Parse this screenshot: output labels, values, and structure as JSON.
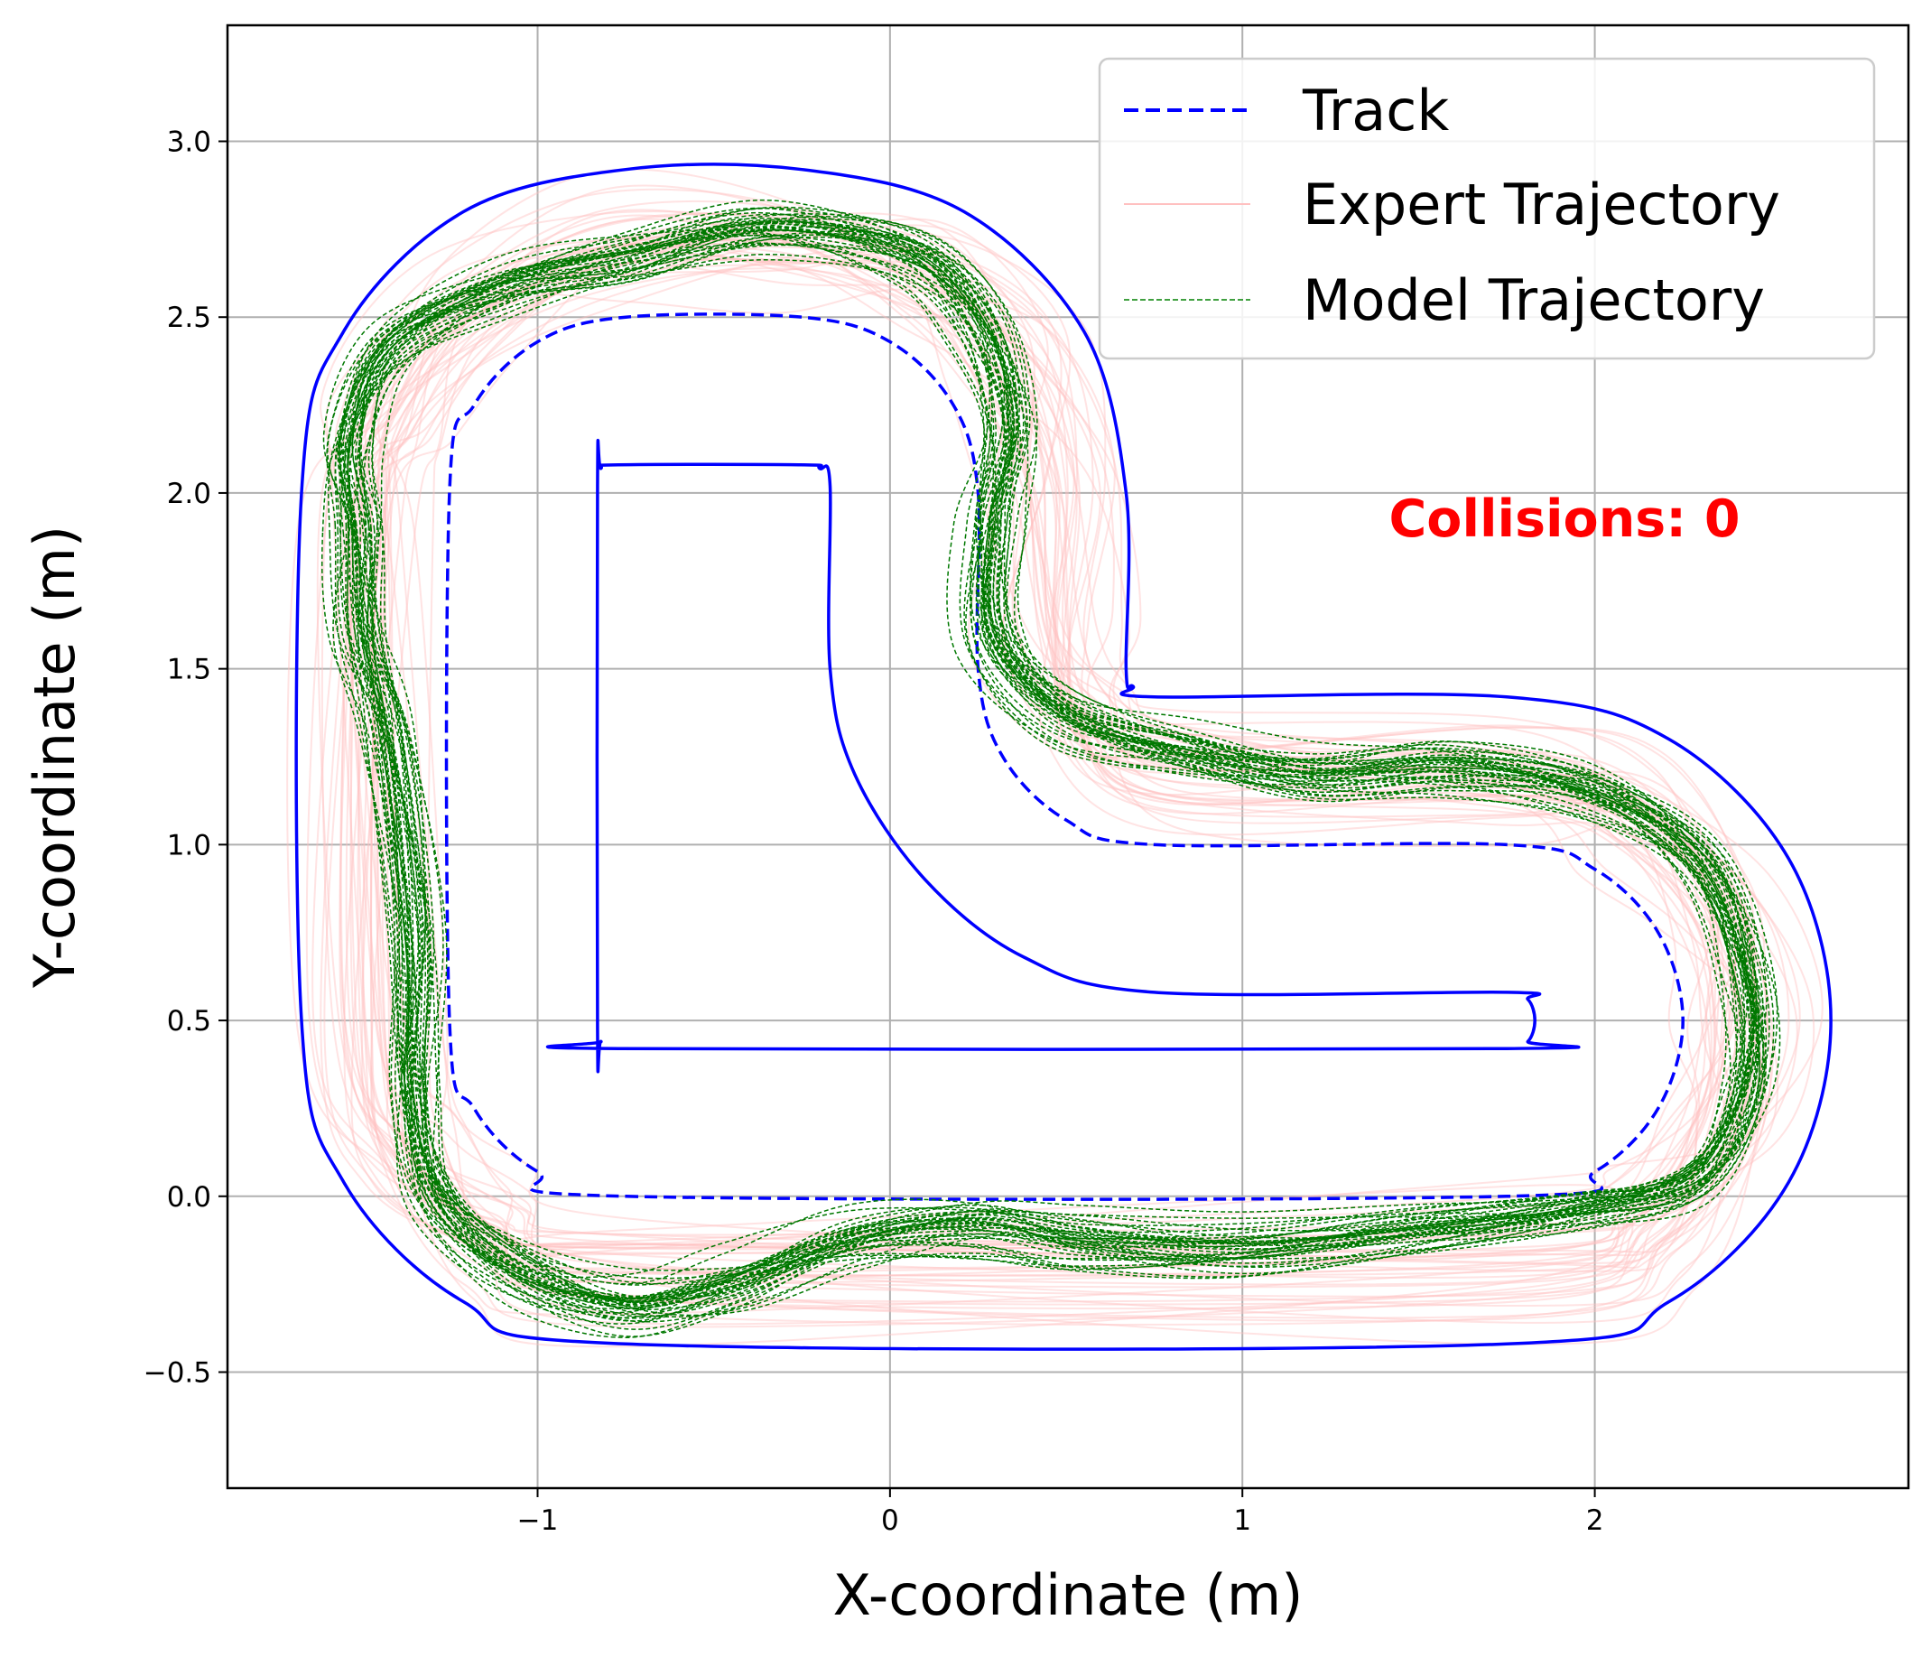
{
  "chart_data": {
    "type": "line",
    "title": "",
    "xlabel": "X-coordinate (m)",
    "ylabel": "Y-coordinate (m)",
    "xlim": [
      -1.88,
      2.89
    ],
    "ylim": [
      -0.83,
      3.33
    ],
    "x_ticks": [
      {
        "value": -1,
        "label": "−1"
      },
      {
        "value": 0,
        "label": "0"
      },
      {
        "value": 1,
        "label": "1"
      },
      {
        "value": 2,
        "label": "2"
      }
    ],
    "y_ticks": [
      {
        "value": -0.5,
        "label": "−0.5"
      },
      {
        "value": 0.0,
        "label": "0.0"
      },
      {
        "value": 0.5,
        "label": "0.5"
      },
      {
        "value": 1.0,
        "label": "1.0"
      },
      {
        "value": 1.5,
        "label": "1.5"
      },
      {
        "value": 2.0,
        "label": "2.0"
      },
      {
        "value": 2.5,
        "label": "2.5"
      },
      {
        "value": 3.0,
        "label": "3.0"
      }
    ],
    "grid": true,
    "legend": {
      "position": "top-right",
      "entries": [
        {
          "label": "Track",
          "color": "#0000ff",
          "style": "dashed"
        },
        {
          "label": "Expert Trajectory",
          "color": "#ffc0c0",
          "style": "solid"
        },
        {
          "label": "Model Trajectory",
          "color": "#008000",
          "style": "dashed"
        }
      ]
    },
    "annotation": {
      "text": "Collisions: 0",
      "x": 1.92,
      "y": 1.92,
      "color": "#ff0000"
    },
    "track_centerline": [
      [
        -0.75,
        0.0
      ],
      [
        1.75,
        0.0
      ],
      [
        2.0,
        0.07
      ],
      [
        2.18,
        0.25
      ],
      [
        2.25,
        0.5
      ],
      [
        2.18,
        0.75
      ],
      [
        2.0,
        0.93
      ],
      [
        1.75,
        1.0
      ],
      [
        0.75,
        1.0
      ],
      [
        0.5,
        1.07
      ],
      [
        0.32,
        1.25
      ],
      [
        0.25,
        1.5
      ],
      [
        0.25,
        2.0
      ],
      [
        0.18,
        2.25
      ],
      [
        0.0,
        2.43
      ],
      [
        -0.25,
        2.5
      ],
      [
        -0.75,
        2.5
      ],
      [
        -1.0,
        2.43
      ],
      [
        -1.18,
        2.25
      ],
      [
        -1.25,
        2.0
      ],
      [
        -1.25,
        0.5
      ],
      [
        -1.18,
        0.25
      ],
      [
        -1.0,
        0.07
      ],
      [
        -0.75,
        0.0
      ]
    ],
    "track_outer_boundary": [
      [
        -0.75,
        -0.42
      ],
      [
        1.75,
        -0.42
      ],
      [
        2.21,
        -0.3
      ],
      [
        2.55,
        0.04
      ],
      [
        2.67,
        0.5
      ],
      [
        2.55,
        0.96
      ],
      [
        2.21,
        1.3
      ],
      [
        1.75,
        1.42
      ],
      [
        0.75,
        1.42
      ],
      [
        0.69,
        1.45
      ],
      [
        0.67,
        1.5
      ],
      [
        0.67,
        2.0
      ],
      [
        0.55,
        2.46
      ],
      [
        0.21,
        2.8
      ],
      [
        -0.25,
        2.92
      ],
      [
        -0.75,
        2.92
      ],
      [
        -1.21,
        2.8
      ],
      [
        -1.55,
        2.46
      ],
      [
        -1.67,
        2.0
      ],
      [
        -1.67,
        0.5
      ],
      [
        -1.55,
        0.04
      ],
      [
        -1.21,
        -0.3
      ],
      [
        -0.75,
        -0.42
      ]
    ],
    "track_inner_boundary": [
      [
        -0.77,
        0.42
      ],
      [
        1.75,
        0.42
      ],
      [
        1.81,
        0.44
      ],
      [
        1.83,
        0.5
      ],
      [
        1.81,
        0.56
      ],
      [
        1.75,
        0.58
      ],
      [
        0.75,
        0.58
      ],
      [
        0.38,
        0.68
      ],
      [
        0.1,
        0.9
      ],
      [
        -0.1,
        1.2
      ],
      [
        -0.17,
        1.5
      ],
      [
        -0.17,
        2.02
      ],
      [
        -0.2,
        2.07
      ],
      [
        -0.25,
        2.08
      ],
      [
        -0.77,
        2.08
      ],
      [
        -0.82,
        2.07
      ],
      [
        -0.83,
        2.02
      ],
      [
        -0.83,
        0.48
      ],
      [
        -0.82,
        0.44
      ],
      [
        -0.77,
        0.42
      ]
    ],
    "expert_trajectory_mean": [
      [
        -0.75,
        -0.22
      ],
      [
        1.75,
        -0.2
      ],
      [
        2.15,
        -0.08
      ],
      [
        2.37,
        0.2
      ],
      [
        2.42,
        0.5
      ],
      [
        2.35,
        0.82
      ],
      [
        2.1,
        1.1
      ],
      [
        1.75,
        1.2
      ],
      [
        0.8,
        1.22
      ],
      [
        0.55,
        1.35
      ],
      [
        0.45,
        1.6
      ],
      [
        0.45,
        2.05
      ],
      [
        0.36,
        2.4
      ],
      [
        0.1,
        2.64
      ],
      [
        -0.3,
        2.72
      ],
      [
        -0.8,
        2.7
      ],
      [
        -1.2,
        2.5
      ],
      [
        -1.4,
        2.2
      ],
      [
        -1.45,
        1.9
      ],
      [
        -1.45,
        0.5
      ],
      [
        -1.36,
        0.12
      ],
      [
        -1.12,
        -0.12
      ],
      [
        -0.75,
        -0.22
      ]
    ],
    "model_trajectory_mean": [
      [
        -1.52,
        1.9
      ],
      [
        -1.54,
        2.15
      ],
      [
        -1.42,
        2.42
      ],
      [
        -1.1,
        2.58
      ],
      [
        -0.75,
        2.66
      ],
      [
        -0.35,
        2.75
      ],
      [
        0.05,
        2.68
      ],
      [
        0.25,
        2.48
      ],
      [
        0.33,
        2.2
      ],
      [
        0.29,
        1.92
      ],
      [
        0.3,
        1.6
      ],
      [
        0.5,
        1.38
      ],
      [
        0.85,
        1.27
      ],
      [
        1.2,
        1.2
      ],
      [
        1.6,
        1.22
      ],
      [
        2.0,
        1.15
      ],
      [
        2.3,
        0.95
      ],
      [
        2.43,
        0.6
      ],
      [
        2.42,
        0.3
      ],
      [
        2.28,
        0.05
      ],
      [
        1.95,
        -0.04
      ],
      [
        1.5,
        -0.1
      ],
      [
        1.0,
        -0.15
      ],
      [
        0.55,
        -0.13
      ],
      [
        0.25,
        -0.09
      ],
      [
        -0.1,
        -0.13
      ],
      [
        -0.45,
        -0.25
      ],
      [
        -0.75,
        -0.3
      ],
      [
        -1.05,
        -0.2
      ],
      [
        -1.28,
        0.0
      ],
      [
        -1.35,
        0.3
      ],
      [
        -1.35,
        0.75
      ],
      [
        -1.42,
        1.3
      ],
      [
        -1.5,
        1.6
      ],
      [
        -1.52,
        1.9
      ]
    ],
    "expert_runs": 40,
    "model_runs": 40
  }
}
